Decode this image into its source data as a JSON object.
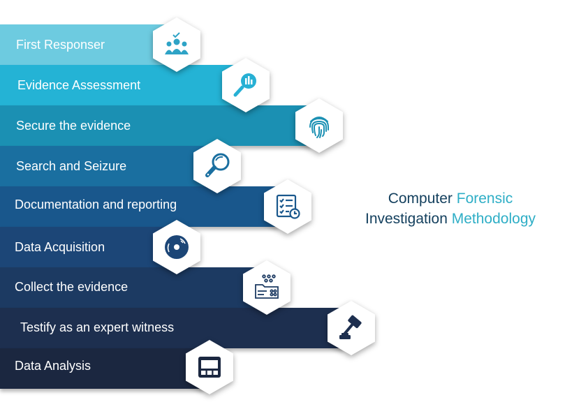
{
  "title": {
    "line1_part1": "Computer",
    "line1_part2": "Forensic",
    "line2_part1": "Investigation",
    "line2_part2": "Methodology",
    "color_dark": "#14405e",
    "color_accent": "#2eaec6"
  },
  "icon_color": "#1c3c5a",
  "steps": [
    {
      "label": "First Responser",
      "color": "#6dcbe0",
      "icon": "team-check-icon"
    },
    {
      "label": "Evidence Assessment",
      "color": "#24b3d5",
      "icon": "magnifier-chart-icon"
    },
    {
      "label": "Secure the evidence",
      "color": "#1b90b3",
      "icon": "fingerprint-icon"
    },
    {
      "label": "Search and Seizure",
      "color": "#1a6fa0",
      "icon": "magnifying-glass-icon"
    },
    {
      "label": "Documentation and reporting",
      "color": "#19578c",
      "icon": "checklist-clock-icon"
    },
    {
      "label": "Data Acquisition",
      "color": "#1c4677",
      "icon": "disc-icon"
    },
    {
      "label": "Collect the evidence",
      "color": "#1c3a62",
      "icon": "data-folder-icon"
    },
    {
      "label": "Testify as an expert witness",
      "color": "#1d2f4f",
      "icon": "gavel-icon"
    },
    {
      "label": "Data Analysis",
      "color": "#1b2740",
      "icon": "monitor-panel-icon"
    }
  ]
}
